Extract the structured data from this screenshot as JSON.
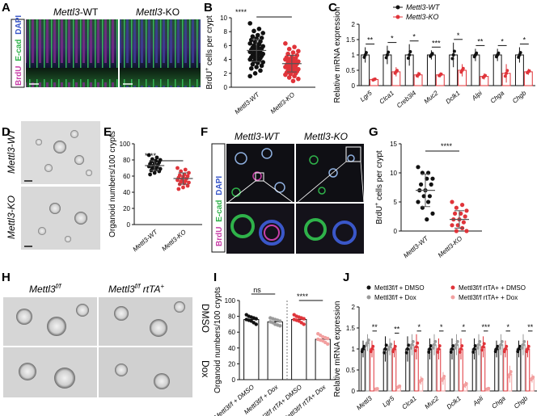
{
  "panels": {
    "A": {
      "label": "A",
      "wt": "Mettl3",
      "wt_suffix": "-WT",
      "ko": "Mettl3",
      "ko_suffix": "-KO",
      "side_brdu": "BrdU",
      "side_ecad": "E-cad",
      "side_dapi": "DAPI"
    },
    "B": {
      "label": "B",
      "ylabel_pre": "BrdU",
      "ylabel_sup": "+",
      "ylabel_post": " cells per crypt",
      "sig": "****",
      "xt_wt": "Mettl3-WT",
      "xt_ko": "Mettl3-KO"
    },
    "C": {
      "label": "C",
      "ylabel": "Relative mRNA expression",
      "legend_wt": "Mettl3-WT",
      "legend_ko": "Mettl3-KO"
    },
    "D": {
      "label": "D",
      "row_wt": "Mettl3-WT",
      "row_ko": "Mettl3-KO"
    },
    "E": {
      "label": "E",
      "ylabel": "Organoid numbers/100 crypts",
      "sig": "****",
      "xt_wt": "Mettl3-WT",
      "xt_ko": "Mettl3-KO"
    },
    "F": {
      "label": "F",
      "wt": "Mettl3-WT",
      "ko": "Mettl3-KO",
      "side_brdu": "BrdU",
      "side_ecad": "E-cad",
      "side_dapi": "DAPI"
    },
    "G": {
      "label": "G",
      "ylabel_pre": "BrdU",
      "ylabel_sup": "+",
      "ylabel_post": " cells per crypt",
      "sig": "****",
      "xt_wt": "Mettl3-WT",
      "xt_ko": "Mettl3-KO"
    },
    "H": {
      "label": "H",
      "col1": "Mettl3",
      "col1_sup": "f/f",
      "col2": "Mettl3",
      "col2_sup": "f/f",
      "col2_post": " rtTA",
      "col2_sup2": "+",
      "row1": "DMSO",
      "row2": "Dox"
    },
    "I": {
      "label": "I",
      "ylabel": "Organoid numbers/100 crypts",
      "sig_ns": "ns",
      "sig_2": "****",
      "xticks": [
        "Mettl3f/f + DMSO",
        "Mettl3f/f + Dox",
        "Mettl3f/f rtTA+ DMSO",
        "Mettl3f/f rtTA+ Dox"
      ]
    },
    "J": {
      "label": "J",
      "ylabel": "Relative mRNA expression",
      "legend": [
        "Mettl3f/f + DMSO",
        "Mettl3f/f + Dox",
        "Mettl3f/f rtTA+ + DMSO",
        "Mettl3f/f rtTA+ + Dox"
      ]
    }
  },
  "colors": {
    "wt": "#111111",
    "ko": "#e0343a",
    "gray": "#9a9a9a",
    "pink": "#f2a0a0",
    "ecad": "#2fb24a",
    "brdu": "#c83fa8",
    "dapi": "#3a57c9"
  },
  "chart_data": [
    {
      "id": "B",
      "type": "scatter",
      "categories": [
        "Mettl3-WT",
        "Mettl3-KO"
      ],
      "ylim": [
        0,
        10
      ],
      "yticks": [
        0,
        2,
        4,
        6,
        8,
        10
      ],
      "series": [
        {
          "name": "Mettl3-WT",
          "mean": 5.3,
          "sd": 1.6,
          "values": [
            9.2,
            8.4,
            8.1,
            7.8,
            7.5,
            7.3,
            7.1,
            7.0,
            6.8,
            6.6,
            6.5,
            6.3,
            6.2,
            6.0,
            5.9,
            5.8,
            5.7,
            5.6,
            5.5,
            5.4,
            5.3,
            5.2,
            5.1,
            5.0,
            4.9,
            4.8,
            4.7,
            4.6,
            4.5,
            4.4,
            4.3,
            4.2,
            4.1,
            4.0,
            3.9,
            3.7,
            3.6,
            3.5,
            3.3,
            3.1,
            2.9,
            2.7,
            2.4,
            2.0,
            1.6
          ]
        },
        {
          "name": "Mettl3-KO",
          "mean": 3.4,
          "sd": 1.2,
          "values": [
            6.3,
            5.8,
            5.5,
            5.2,
            5.0,
            4.8,
            4.6,
            4.4,
            4.3,
            4.2,
            4.1,
            4.0,
            3.9,
            3.8,
            3.7,
            3.6,
            3.5,
            3.4,
            3.3,
            3.2,
            3.1,
            3.0,
            2.9,
            2.8,
            2.7,
            2.6,
            2.5,
            2.4,
            2.3,
            2.2,
            2.1,
            2.0,
            1.9,
            1.8,
            1.6,
            1.4,
            1.2,
            0.9
          ]
        }
      ]
    },
    {
      "id": "C",
      "type": "bar",
      "categories": [
        "Lgr5",
        "Clca1",
        "Creb3l4",
        "Muc2",
        "Dclk1",
        "Alpi",
        "Chga",
        "Chgb"
      ],
      "ylim": [
        0,
        2.0
      ],
      "yticks": [
        0,
        0.5,
        1.0,
        1.5,
        2.0
      ],
      "series": [
        {
          "name": "Mettl3-WT",
          "values": [
            1.0,
            1.0,
            1.0,
            1.0,
            1.0,
            1.0,
            1.0,
            1.0
          ],
          "err": [
            0.25,
            0.3,
            0.35,
            0.15,
            0.4,
            0.2,
            0.2,
            0.25
          ]
        },
        {
          "name": "Mettl3-KO",
          "values": [
            0.2,
            0.45,
            0.35,
            0.35,
            0.5,
            0.3,
            0.4,
            0.45
          ],
          "err": [
            0.05,
            0.15,
            0.1,
            0.08,
            0.2,
            0.1,
            0.3,
            0.1
          ]
        }
      ],
      "sig": [
        "**",
        "*",
        "*",
        "***",
        "*",
        "**",
        "*",
        "*"
      ]
    },
    {
      "id": "E",
      "type": "scatter",
      "categories": [
        "Mettl3-WT",
        "Mettl3-KO"
      ],
      "ylim": [
        0,
        100
      ],
      "yticks": [
        0,
        20,
        40,
        60,
        80,
        100
      ],
      "series": [
        {
          "name": "Mettl3-WT",
          "mean": 73,
          "sd": 6,
          "values": [
            86,
            83,
            81,
            80,
            79,
            78,
            77,
            76,
            75,
            74,
            73,
            72,
            71,
            70,
            69,
            68,
            67,
            66,
            64,
            62
          ]
        },
        {
          "name": "Mettl3-KO",
          "mean": 57,
          "sd": 7,
          "values": [
            70,
            68,
            66,
            64,
            62,
            61,
            60,
            59,
            58,
            57,
            56,
            55,
            54,
            53,
            52,
            51,
            50,
            48,
            46,
            44
          ]
        }
      ]
    },
    {
      "id": "G",
      "type": "scatter",
      "categories": [
        "Mettl3-WT",
        "Mettl3-KO"
      ],
      "ylim": [
        0,
        15
      ],
      "yticks": [
        0,
        5,
        10,
        15
      ],
      "series": [
        {
          "name": "Mettl3-WT",
          "mean": 7,
          "sd": 2.8,
          "values": [
            11,
            10,
            10,
            9,
            9,
            8,
            8,
            7,
            7,
            6,
            6,
            5,
            5,
            4,
            3,
            2
          ]
        },
        {
          "name": "Mettl3-KO",
          "mean": 2,
          "sd": 1.5,
          "values": [
            5,
            4.5,
            4,
            3.5,
            3,
            3,
            2.5,
            2,
            2,
            1.5,
            1,
            1,
            0.5,
            0,
            0
          ]
        }
      ]
    },
    {
      "id": "I",
      "type": "bar",
      "categories": [
        "Mettl3f/f + DMSO",
        "Mettl3f/f + Dox",
        "Mettl3f/f rtTA+ DMSO",
        "Mettl3f/f rtTA+ Dox"
      ],
      "ylim": [
        0,
        100
      ],
      "yticks": [
        0,
        20,
        40,
        60,
        80,
        100
      ],
      "series": [
        {
          "name": "groups",
          "values": [
            76,
            73,
            76,
            51
          ],
          "err": [
            4,
            4,
            4,
            4
          ],
          "points": [
            [
              82,
              80,
              79,
              78,
              77,
              76,
              75,
              74,
              72,
              70
            ],
            [
              78,
              77,
              76,
              75,
              74,
              73,
              72,
              70,
              69,
              68
            ],
            [
              82,
              80,
              79,
              78,
              77,
              76,
              75,
              74,
              72,
              70
            ],
            [
              58,
              56,
              54,
              53,
              52,
              51,
              50,
              49,
              47,
              45
            ]
          ]
        }
      ]
    },
    {
      "id": "J",
      "type": "bar",
      "categories": [
        "Mettl3",
        "Lgr5",
        "Clca1",
        "Muc2",
        "Dclk1",
        "Apli",
        "Chga",
        "Chgb"
      ],
      "ylim": [
        0,
        2.0
      ],
      "yticks": [
        0,
        0.5,
        1.0,
        1.5,
        2.0
      ],
      "series": [
        {
          "name": "Mettl3f/f + DMSO",
          "values": [
            1,
            1,
            1,
            1,
            1,
            1,
            1,
            1
          ],
          "err": [
            0.2,
            0.3,
            0.3,
            0.25,
            0.25,
            0.25,
            0.2,
            0.2
          ]
        },
        {
          "name": "Mettl3f/f + Dox",
          "values": [
            1.15,
            1.05,
            1.1,
            1.1,
            1.1,
            1.1,
            1.1,
            1.1
          ],
          "err": [
            0.2,
            0.2,
            0.25,
            0.25,
            0.25,
            0.25,
            0.25,
            0.25
          ]
        },
        {
          "name": "Mettl3f/f rtTA+ + DMSO",
          "values": [
            1.0,
            1.0,
            1.05,
            1.0,
            1.0,
            1.05,
            1.0,
            1.0
          ],
          "err": [
            0.2,
            0.2,
            0.3,
            0.25,
            0.25,
            0.25,
            0.2,
            0.2
          ]
        },
        {
          "name": "Mettl3f/f rtTA+ + Dox",
          "values": [
            0.05,
            0.1,
            0.25,
            0.3,
            0.15,
            0.05,
            0.4,
            0.3
          ],
          "err": [
            0.02,
            0.05,
            0.1,
            0.15,
            0.08,
            0.03,
            0.2,
            0.1
          ]
        }
      ],
      "sig": [
        "**",
        "**",
        "*",
        "*",
        "*",
        "***",
        "*",
        "**"
      ]
    }
  ]
}
